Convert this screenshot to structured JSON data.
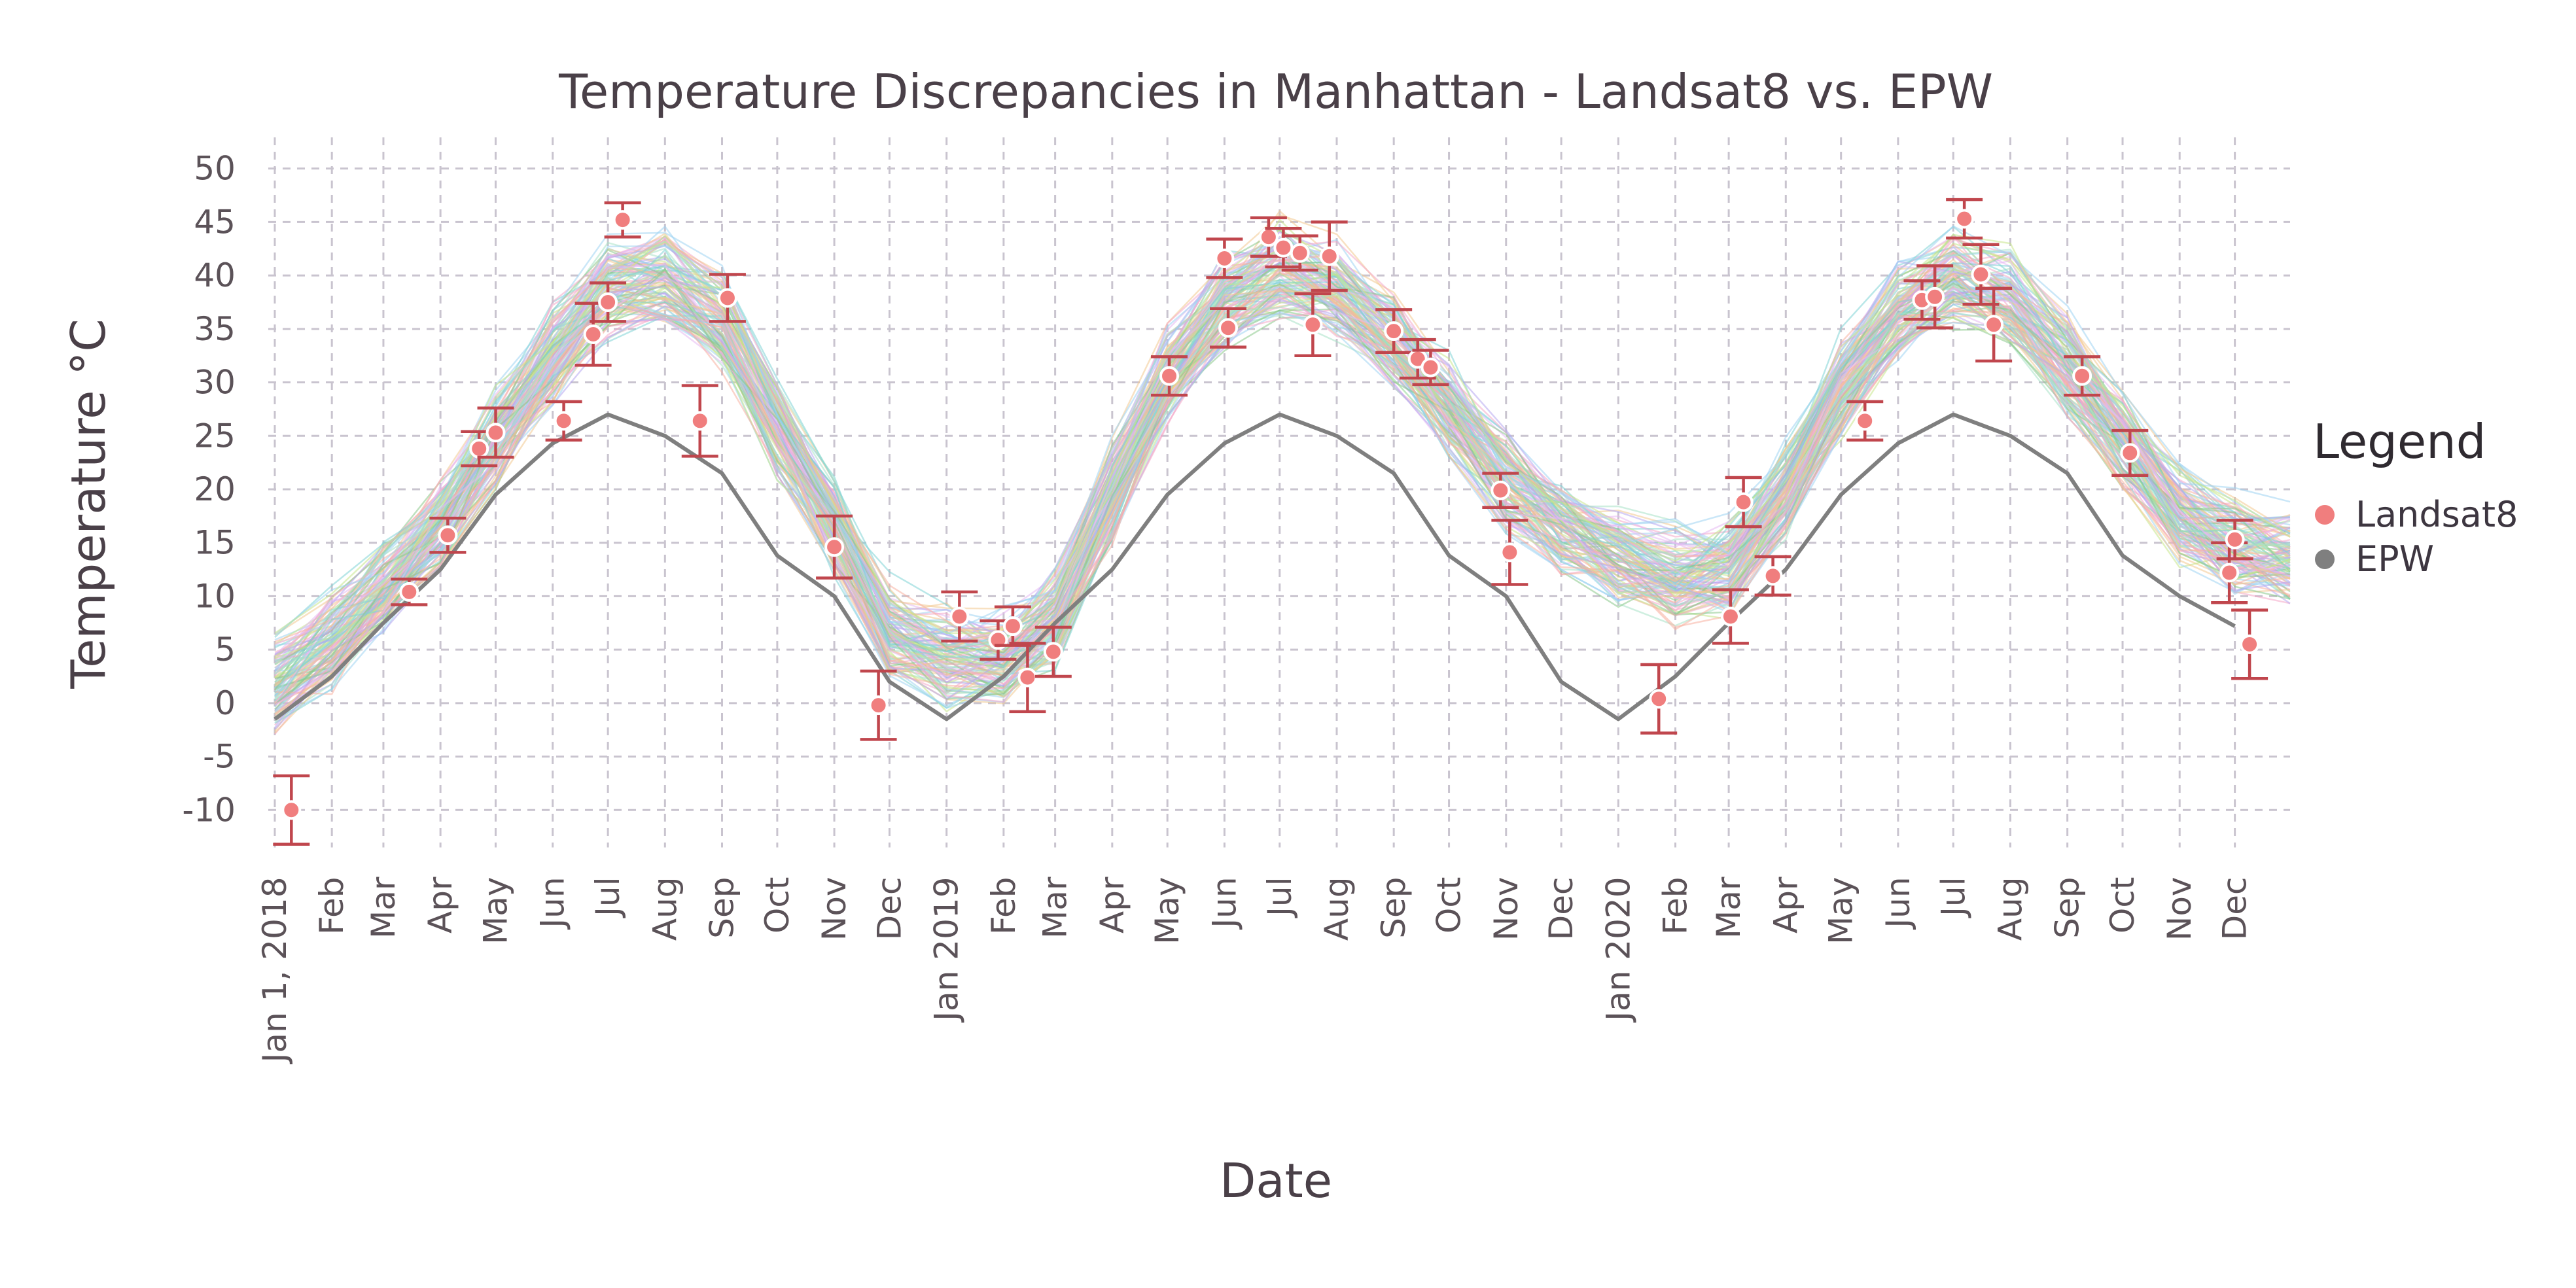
{
  "chart_data": {
    "type": "line",
    "title": "Temperature Discrepancies in Manhattan - Landsat8 vs. EPW",
    "xlabel": "Date",
    "ylabel": "Temperature °C",
    "xlim": [
      "2018-01-01",
      "2020-12-31"
    ],
    "ylim": [
      -15,
      52
    ],
    "yticks": [
      50,
      45,
      40,
      35,
      30,
      25,
      20,
      15,
      10,
      5,
      0,
      -5,
      -10
    ],
    "xticks": [
      {
        "date": "2018-01-01",
        "label": "Jan 1, 2018"
      },
      {
        "date": "2018-02-01",
        "label": "Feb"
      },
      {
        "date": "2018-03-01",
        "label": "Mar"
      },
      {
        "date": "2018-04-01",
        "label": "Apr"
      },
      {
        "date": "2018-05-01",
        "label": "May"
      },
      {
        "date": "2018-06-01",
        "label": "Jun"
      },
      {
        "date": "2018-07-01",
        "label": "Jul"
      },
      {
        "date": "2018-08-01",
        "label": "Aug"
      },
      {
        "date": "2018-09-01",
        "label": "Sep"
      },
      {
        "date": "2018-10-01",
        "label": "Oct"
      },
      {
        "date": "2018-11-01",
        "label": "Nov"
      },
      {
        "date": "2018-12-01",
        "label": "Dec"
      },
      {
        "date": "2019-01-01",
        "label": "Jan 2019"
      },
      {
        "date": "2019-02-01",
        "label": "Feb"
      },
      {
        "date": "2019-03-01",
        "label": "Mar"
      },
      {
        "date": "2019-04-01",
        "label": "Apr"
      },
      {
        "date": "2019-05-01",
        "label": "May"
      },
      {
        "date": "2019-06-01",
        "label": "Jun"
      },
      {
        "date": "2019-07-01",
        "label": "Jul"
      },
      {
        "date": "2019-08-01",
        "label": "Aug"
      },
      {
        "date": "2019-09-01",
        "label": "Sep"
      },
      {
        "date": "2019-10-01",
        "label": "Oct"
      },
      {
        "date": "2019-11-01",
        "label": "Nov"
      },
      {
        "date": "2019-12-01",
        "label": "Dec"
      },
      {
        "date": "2020-01-01",
        "label": "Jan 2020"
      },
      {
        "date": "2020-02-01",
        "label": "Feb"
      },
      {
        "date": "2020-03-01",
        "label": "Mar"
      },
      {
        "date": "2020-04-01",
        "label": "Apr"
      },
      {
        "date": "2020-05-01",
        "label": "May"
      },
      {
        "date": "2020-06-01",
        "label": "Jun"
      },
      {
        "date": "2020-07-01",
        "label": "Jul"
      },
      {
        "date": "2020-08-01",
        "label": "Aug"
      },
      {
        "date": "2020-09-01",
        "label": "Sep"
      },
      {
        "date": "2020-10-01",
        "label": "Oct"
      },
      {
        "date": "2020-11-01",
        "label": "Nov"
      },
      {
        "date": "2020-12-01",
        "label": "Dec"
      }
    ],
    "grid": true,
    "legend": {
      "title": "Legend",
      "placement": "right",
      "entries": [
        {
          "name": "Landsat8",
          "color": "#f07e7e"
        },
        {
          "name": "EPW",
          "color": "#7f7f7f"
        }
      ]
    },
    "series": [
      {
        "name": "EPW",
        "type": "line",
        "color": "#7f7f7f",
        "points": [
          {
            "x": "2018-01-01",
            "y": -1.5
          },
          {
            "x": "2018-02-01",
            "y": 2.5
          },
          {
            "x": "2018-03-01",
            "y": 7.5
          },
          {
            "x": "2018-04-01",
            "y": 12.5
          },
          {
            "x": "2018-05-01",
            "y": 19.5
          },
          {
            "x": "2018-06-01",
            "y": 24.3
          },
          {
            "x": "2018-07-01",
            "y": 27
          },
          {
            "x": "2018-08-01",
            "y": 25
          },
          {
            "x": "2018-09-01",
            "y": 21.5
          },
          {
            "x": "2018-10-01",
            "y": 13.8
          },
          {
            "x": "2018-11-01",
            "y": 10
          },
          {
            "x": "2018-12-01",
            "y": 2
          },
          {
            "x": "2019-01-01",
            "y": -1.5
          },
          {
            "x": "2019-02-01",
            "y": 2.5
          },
          {
            "x": "2019-03-01",
            "y": 7.5
          },
          {
            "x": "2019-04-01",
            "y": 12.5
          },
          {
            "x": "2019-05-01",
            "y": 19.5
          },
          {
            "x": "2019-06-01",
            "y": 24.3
          },
          {
            "x": "2019-07-01",
            "y": 27
          },
          {
            "x": "2019-08-01",
            "y": 25
          },
          {
            "x": "2019-09-01",
            "y": 21.5
          },
          {
            "x": "2019-10-01",
            "y": 13.8
          },
          {
            "x": "2019-11-01",
            "y": 10
          },
          {
            "x": "2019-12-01",
            "y": 2
          },
          {
            "x": "2020-01-01",
            "y": -1.5
          },
          {
            "x": "2020-02-01",
            "y": 2.5
          },
          {
            "x": "2020-03-01",
            "y": 7.5
          },
          {
            "x": "2020-04-01",
            "y": 12.5
          },
          {
            "x": "2020-05-01",
            "y": 19.5
          },
          {
            "x": "2020-06-01",
            "y": 24.3
          },
          {
            "x": "2020-07-01",
            "y": 27
          },
          {
            "x": "2020-08-01",
            "y": 25
          },
          {
            "x": "2020-09-01",
            "y": 21.5
          },
          {
            "x": "2020-10-01",
            "y": 13.8
          },
          {
            "x": "2020-11-01",
            "y": 10
          },
          {
            "x": "2020-12-01",
            "y": 7.2
          }
        ]
      },
      {
        "name": "Landsat8",
        "type": "scatter-errorbar",
        "color": "#f07e7e",
        "errorbar_color": "#c0464d",
        "points": [
          {
            "x": "2018-01-10",
            "y": -10,
            "err": 3.2
          },
          {
            "x": "2018-03-15",
            "y": 10.4,
            "err": 1.2
          },
          {
            "x": "2018-04-05",
            "y": 15.7,
            "err": 1.6
          },
          {
            "x": "2018-04-22",
            "y": 23.8,
            "err": 1.6
          },
          {
            "x": "2018-05-01",
            "y": 25.3,
            "err": 2.3
          },
          {
            "x": "2018-06-07",
            "y": 26.4,
            "err": 1.8
          },
          {
            "x": "2018-06-23",
            "y": 34.5,
            "err": 2.9
          },
          {
            "x": "2018-07-01",
            "y": 37.5,
            "err": 1.8
          },
          {
            "x": "2018-07-09",
            "y": 45.2,
            "err": 1.6
          },
          {
            "x": "2018-08-20",
            "y": 26.4,
            "err": 3.3
          },
          {
            "x": "2018-09-04",
            "y": 37.9,
            "err": 2.2
          },
          {
            "x": "2018-11-01",
            "y": 14.6,
            "err": 2.9
          },
          {
            "x": "2018-11-25",
            "y": -0.2,
            "err": 3.2
          },
          {
            "x": "2019-01-08",
            "y": 8.1,
            "err": 2.3
          },
          {
            "x": "2019-01-29",
            "y": 5.9,
            "err": 1.8
          },
          {
            "x": "2019-02-06",
            "y": 7.2,
            "err": 1.8
          },
          {
            "x": "2019-02-14",
            "y": 2.4,
            "err": 3.2
          },
          {
            "x": "2019-02-28",
            "y": 4.8,
            "err": 2.3
          },
          {
            "x": "2019-05-02",
            "y": 30.6,
            "err": 1.8
          },
          {
            "x": "2019-06-01",
            "y": 41.6,
            "err": 1.8
          },
          {
            "x": "2019-06-03",
            "y": 35.1,
            "err": 1.8
          },
          {
            "x": "2019-06-25",
            "y": 43.6,
            "err": 1.8
          },
          {
            "x": "2019-07-03",
            "y": 42.6,
            "err": 1.8
          },
          {
            "x": "2019-07-12",
            "y": 42.1,
            "err": 1.6
          },
          {
            "x": "2019-07-19",
            "y": 35.4,
            "err": 2.9
          },
          {
            "x": "2019-07-28",
            "y": 41.8,
            "err": 3.2
          },
          {
            "x": "2019-09-01",
            "y": 34.8,
            "err": 2.0
          },
          {
            "x": "2019-09-14",
            "y": 32.2,
            "err": 1.8
          },
          {
            "x": "2019-09-21",
            "y": 31.4,
            "err": 1.6
          },
          {
            "x": "2019-10-29",
            "y": 19.9,
            "err": 1.6
          },
          {
            "x": "2019-11-03",
            "y": 14.1,
            "err": 3.0
          },
          {
            "x": "2020-01-23",
            "y": 0.4,
            "err": 3.2
          },
          {
            "x": "2020-03-02",
            "y": 8.1,
            "err": 2.5
          },
          {
            "x": "2020-03-09",
            "y": 18.8,
            "err": 2.3
          },
          {
            "x": "2020-03-25",
            "y": 11.9,
            "err": 1.8
          },
          {
            "x": "2020-05-14",
            "y": 26.4,
            "err": 1.8
          },
          {
            "x": "2020-06-14",
            "y": 37.7,
            "err": 1.8
          },
          {
            "x": "2020-06-21",
            "y": 38,
            "err": 2.9
          },
          {
            "x": "2020-07-07",
            "y": 45.3,
            "err": 1.8
          },
          {
            "x": "2020-07-16",
            "y": 40.1,
            "err": 2.8
          },
          {
            "x": "2020-07-23",
            "y": 35.4,
            "err": 3.4
          },
          {
            "x": "2020-09-09",
            "y": 30.6,
            "err": 1.8
          },
          {
            "x": "2020-10-05",
            "y": 23.4,
            "err": 2.1
          },
          {
            "x": "2020-11-28",
            "y": 12.2,
            "err": 2.8
          },
          {
            "x": "2020-12-01",
            "y": 15.3,
            "err": 1.8
          },
          {
            "x": "2020-12-09",
            "y": 5.5,
            "err": 3.2
          }
        ]
      }
    ],
    "background_traces": {
      "description_count": 120,
      "palette": [
        "#7fd3d6",
        "#8ac98a",
        "#f3c98f",
        "#f4a7c8",
        "#b7a7f0",
        "#9fd4f2",
        "#c7e58a",
        "#f7b0a0",
        "#a7e1c6",
        "#e5b8f3"
      ],
      "envelope": [
        {
          "x": "2018-01-01",
          "y": 2
        },
        {
          "x": "2018-02-01",
          "y": 6
        },
        {
          "x": "2018-03-01",
          "y": 11
        },
        {
          "x": "2018-04-01",
          "y": 17
        },
        {
          "x": "2018-05-01",
          "y": 25
        },
        {
          "x": "2018-06-01",
          "y": 33
        },
        {
          "x": "2018-07-01",
          "y": 39
        },
        {
          "x": "2018-08-01",
          "y": 40
        },
        {
          "x": "2018-09-01",
          "y": 36
        },
        {
          "x": "2018-10-01",
          "y": 26
        },
        {
          "x": "2018-11-01",
          "y": 17
        },
        {
          "x": "2018-12-01",
          "y": 7
        },
        {
          "x": "2019-01-01",
          "y": 4.5
        },
        {
          "x": "2019-02-01",
          "y": 4.5
        },
        {
          "x": "2019-03-01",
          "y": 8
        },
        {
          "x": "2019-04-01",
          "y": 20
        },
        {
          "x": "2019-05-01",
          "y": 31
        },
        {
          "x": "2019-06-01",
          "y": 38
        },
        {
          "x": "2019-07-01",
          "y": 41
        },
        {
          "x": "2019-08-01",
          "y": 39
        },
        {
          "x": "2019-09-01",
          "y": 34
        },
        {
          "x": "2019-10-01",
          "y": 28
        },
        {
          "x": "2019-11-01",
          "y": 21
        },
        {
          "x": "2019-12-01",
          "y": 17
        },
        {
          "x": "2020-01-01",
          "y": 14
        },
        {
          "x": "2020-02-01",
          "y": 12
        },
        {
          "x": "2020-03-01",
          "y": 13
        },
        {
          "x": "2020-04-01",
          "y": 20
        },
        {
          "x": "2020-05-01",
          "y": 30
        },
        {
          "x": "2020-06-01",
          "y": 37
        },
        {
          "x": "2020-07-01",
          "y": 40
        },
        {
          "x": "2020-08-01",
          "y": 38
        },
        {
          "x": "2020-09-01",
          "y": 32
        },
        {
          "x": "2020-10-01",
          "y": 25
        },
        {
          "x": "2020-11-01",
          "y": 18
        },
        {
          "x": "2020-12-01",
          "y": 15
        },
        {
          "x": "2020-12-31",
          "y": 14
        }
      ]
    }
  }
}
